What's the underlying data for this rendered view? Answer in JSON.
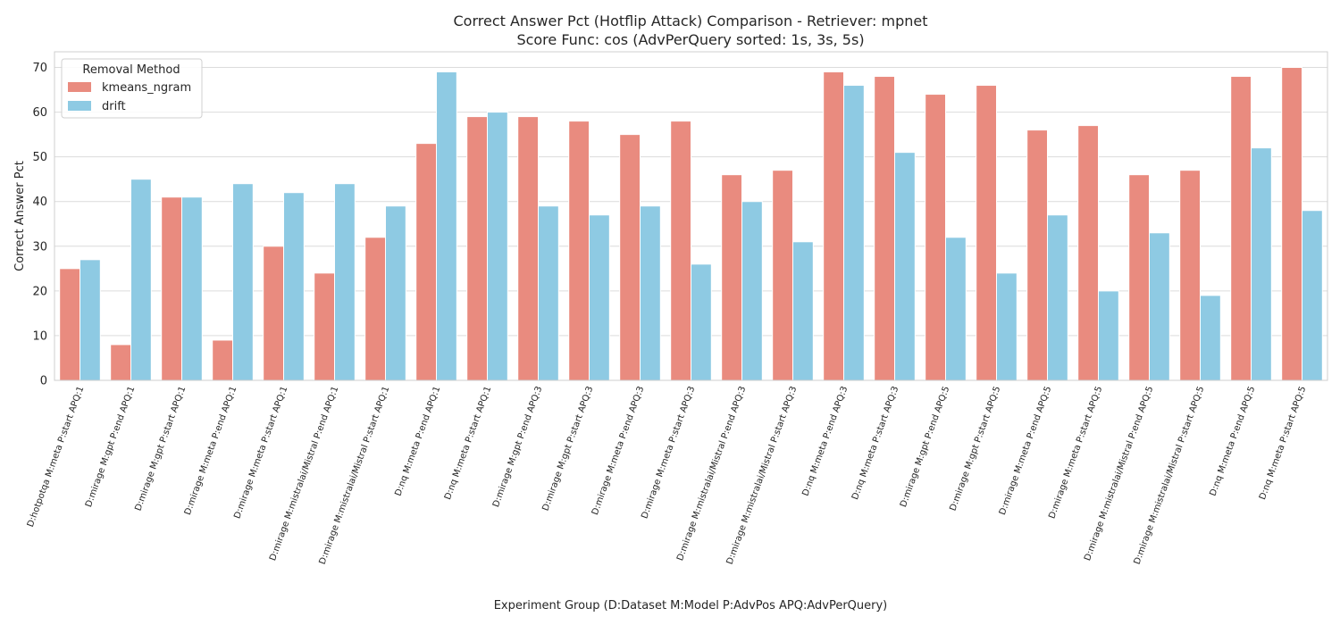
{
  "chart_data": {
    "type": "bar",
    "title_line1": "Correct Answer Pct (Hotflip Attack) Comparison - Retriever: mpnet",
    "title_line2": "Score Func: cos (AdvPerQuery sorted: 1s, 3s, 5s)",
    "xlabel": "Experiment Group (D:Dataset M:Model P:AdvPos APQ:AdvPerQuery)",
    "ylabel": "Correct Answer Pct",
    "ylim": [
      0,
      73.5
    ],
    "yticks": [
      0,
      10,
      20,
      30,
      40,
      50,
      60,
      70
    ],
    "grid": true,
    "legend": {
      "title": "Removal Method",
      "placement": "top-left"
    },
    "categories": [
      "D:hotpotqa M:meta P:start APQ:1",
      "D:mirage M:gpt P:end APQ:1",
      "D:mirage M:gpt P:start APQ:1",
      "D:mirage M:meta P:end APQ:1",
      "D:mirage M:meta P:start APQ:1",
      "D:mirage M:mistralai/Mistral P:end APQ:1",
      "D:mirage M:mistralai/Mistral P:start APQ:1",
      "D:nq M:meta P:end APQ:1",
      "D:nq M:meta P:start APQ:1",
      "D:mirage M:gpt P:end APQ:3",
      "D:mirage M:gpt P:start APQ:3",
      "D:mirage M:meta P:end APQ:3",
      "D:mirage M:meta P:start APQ:3",
      "D:mirage M:mistralai/Mistral P:end APQ:3",
      "D:mirage M:mistralai/Mistral P:start APQ:3",
      "D:nq M:meta P:end APQ:3",
      "D:nq M:meta P:start APQ:3",
      "D:mirage M:gpt P:end APQ:5",
      "D:mirage M:gpt P:start APQ:5",
      "D:mirage M:meta P:end APQ:5",
      "D:mirage M:meta P:start APQ:5",
      "D:mirage M:mistralai/Mistral P:end APQ:5",
      "D:mirage M:mistralai/Mistral P:start APQ:5",
      "D:nq M:meta P:end APQ:5",
      "D:nq M:meta P:start APQ:5"
    ],
    "series": [
      {
        "name": "kmeans_ngram",
        "color": "#e98b7f",
        "values": [
          25,
          8,
          41,
          9,
          30,
          24,
          32,
          53,
          59,
          59,
          58,
          55,
          58,
          46,
          47,
          69,
          68,
          64,
          66,
          56,
          57,
          46,
          47,
          68,
          70
        ]
      },
      {
        "name": "drift",
        "color": "#8ecae3",
        "values": [
          27,
          45,
          41,
          44,
          42,
          44,
          39,
          69,
          60,
          39,
          37,
          39,
          26,
          40,
          31,
          66,
          51,
          32,
          24,
          37,
          20,
          33,
          19,
          52,
          38
        ]
      }
    ]
  }
}
